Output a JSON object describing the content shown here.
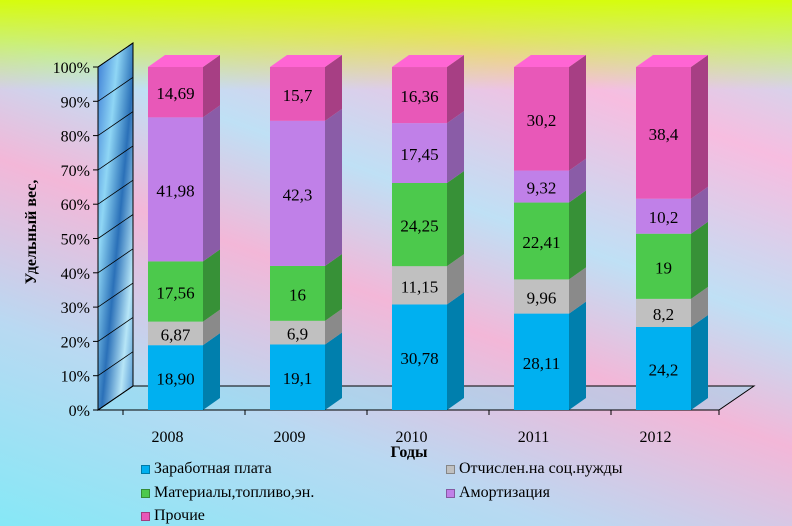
{
  "chart_data": {
    "type": "bar",
    "stacked": true,
    "percent_stacked": true,
    "three_d": true,
    "xlabel": "Годы",
    "ylabel": "Удельный вес,",
    "categories": [
      "2008",
      "2009",
      "2010",
      "2011",
      "2012"
    ],
    "ylim": [
      0,
      100
    ],
    "y_ticks": [
      "0%",
      "10%",
      "20%",
      "30%",
      "40%",
      "50%",
      "60%",
      "70%",
      "80%",
      "90%",
      "100%"
    ],
    "legend_position": "bottom",
    "series": [
      {
        "name": "Заработная плата",
        "color": "#00b0f0",
        "values": [
          18.9,
          19.1,
          30.78,
          28.11,
          24.2
        ],
        "labels": [
          "18,90",
          "19,1",
          "30,78",
          "28,11",
          "24,2"
        ]
      },
      {
        "name": "Отчислен.на соц.нужды",
        "color": "#c0c0c0",
        "values": [
          6.87,
          6.9,
          11.15,
          9.96,
          8.2
        ],
        "labels": [
          "6,87",
          "6,9",
          "11,15",
          "9,96",
          "8,2"
        ]
      },
      {
        "name": "Материалы,топливо,эн.",
        "color": "#4cc94c",
        "values": [
          17.56,
          16,
          24.25,
          22.41,
          19
        ],
        "labels": [
          "17,56",
          "16",
          "24,25",
          "22,41",
          "19"
        ]
      },
      {
        "name": "Амортизация",
        "color": "#c080e8",
        "values": [
          41.98,
          42.3,
          17.45,
          9.32,
          10.2
        ],
        "labels": [
          "41,98",
          "42,3",
          "17,45",
          "9,32",
          "10,2"
        ]
      },
      {
        "name": "Прочие",
        "color": "#e858b8",
        "values": [
          14.69,
          15.7,
          16.36,
          30.2,
          38.4
        ],
        "labels": [
          "14,69",
          "15,7",
          "16,36",
          "30,2",
          "38,4"
        ]
      }
    ]
  }
}
